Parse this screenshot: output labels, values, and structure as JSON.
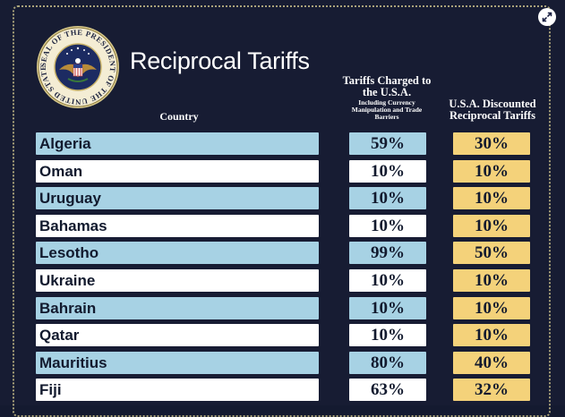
{
  "title": "Reciprocal Tariffs",
  "seal_text": "SEAL OF THE PRESIDENT OF THE UNITED STATES",
  "columns": {
    "country": "Country",
    "charged": "Tariffs Charged to the U.S.A.",
    "charged_sub": "Including Currency Manipulation and Trade Barriers",
    "discount": "U.S.A. Discounted Reciprocal Tariffs"
  },
  "colors": {
    "row_blue": "#a7d2e4",
    "row_white": "#ffffff",
    "discount_gold": "#f4d27a",
    "background": "#171c33"
  },
  "icons": {
    "expand": "expand-icon"
  },
  "chart_data": {
    "type": "table",
    "title": "Reciprocal Tariffs",
    "headers": [
      "Country",
      "Tariffs Charged to the U.S.A.",
      "U.S.A. Discounted Reciprocal Tariffs"
    ],
    "rows": [
      {
        "country": "Algeria",
        "charged": "59%",
        "discount": "30%"
      },
      {
        "country": "Oman",
        "charged": "10%",
        "discount": "10%"
      },
      {
        "country": "Uruguay",
        "charged": "10%",
        "discount": "10%"
      },
      {
        "country": "Bahamas",
        "charged": "10%",
        "discount": "10%"
      },
      {
        "country": "Lesotho",
        "charged": "99%",
        "discount": "50%"
      },
      {
        "country": "Ukraine",
        "charged": "10%",
        "discount": "10%"
      },
      {
        "country": "Bahrain",
        "charged": "10%",
        "discount": "10%"
      },
      {
        "country": "Qatar",
        "charged": "10%",
        "discount": "10%"
      },
      {
        "country": "Mauritius",
        "charged": "80%",
        "discount": "40%"
      },
      {
        "country": "Fiji",
        "charged": "63%",
        "discount": "32%"
      }
    ]
  }
}
